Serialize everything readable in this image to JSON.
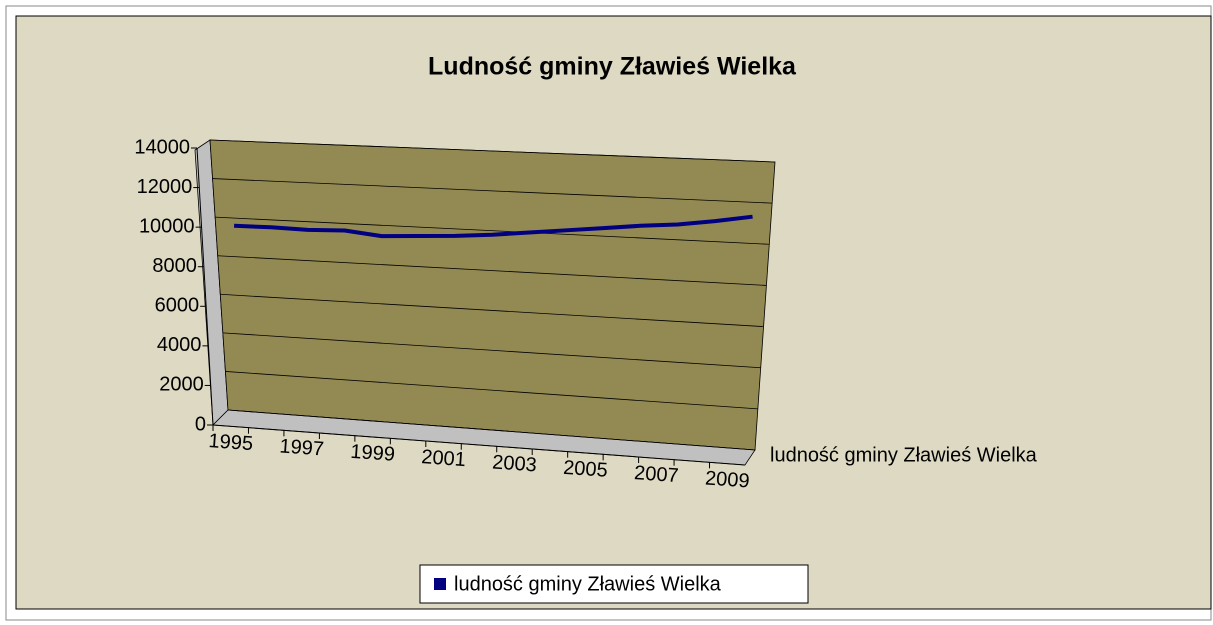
{
  "chart_data": {
    "type": "line3d",
    "title": "Ludność gminy Zławieś Wielka",
    "categories": [
      "1995",
      null,
      "1997",
      null,
      "1999",
      null,
      "2001",
      null,
      "2003",
      null,
      "2005",
      null,
      "2007",
      null,
      "2009"
    ],
    "series": [
      {
        "name": "ludność gminy Zławieś Wielka",
        "color": "#000080",
        "values": [
          9600,
          9620,
          9580,
          9640,
          9450,
          9550,
          9650,
          9800,
          10000,
          10200,
          10400,
          10600,
          10750,
          11000,
          11300
        ]
      }
    ],
    "ylim": [
      0,
      14000
    ],
    "yticks": [
      0,
      2000,
      4000,
      6000,
      8000,
      10000,
      12000,
      14000
    ],
    "grid": true,
    "legend": "bottom"
  }
}
